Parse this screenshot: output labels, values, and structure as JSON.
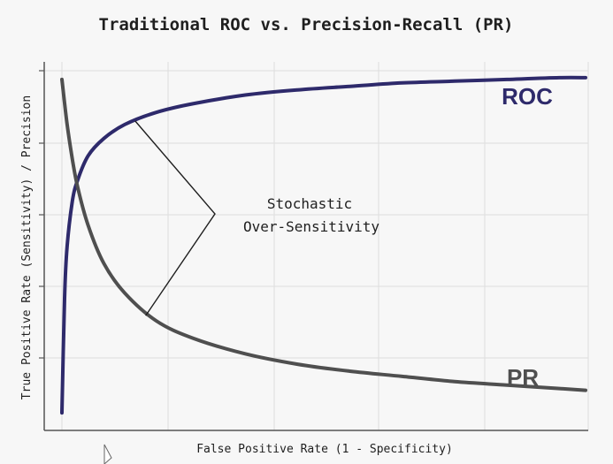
{
  "chart_data": {
    "type": "line",
    "title": "Traditional ROC vs. Precision-Recall (PR)",
    "xlabel": "False Positive Rate (1 - Specificity)",
    "ylabel": "True Positive Rate (Sensitivity) / Precision",
    "xlim": [
      0,
      1
    ],
    "ylim": [
      0,
      1
    ],
    "grid": true,
    "axis_ticks_labeled": false,
    "series": [
      {
        "name": "ROC",
        "color": "#2e2a6b",
        "x": [
          0.0,
          0.005,
          0.01,
          0.02,
          0.03,
          0.05,
          0.08,
          0.12,
          0.18,
          0.25,
          0.35,
          0.45,
          0.55,
          0.65,
          0.75,
          0.85,
          0.95,
          1.0
        ],
        "y": [
          0.02,
          0.35,
          0.5,
          0.63,
          0.69,
          0.76,
          0.81,
          0.85,
          0.885,
          0.91,
          0.935,
          0.95,
          0.96,
          0.97,
          0.975,
          0.98,
          0.985,
          0.985
        ]
      },
      {
        "name": "PR",
        "color": "#4f4f4f",
        "x": [
          0.0,
          0.01,
          0.02,
          0.03,
          0.05,
          0.08,
          0.12,
          0.18,
          0.25,
          0.35,
          0.45,
          0.55,
          0.65,
          0.75,
          0.85,
          0.95,
          1.0
        ],
        "y": [
          0.98,
          0.85,
          0.75,
          0.67,
          0.56,
          0.45,
          0.365,
          0.285,
          0.235,
          0.19,
          0.16,
          0.14,
          0.125,
          0.11,
          0.1,
          0.09,
          0.085
        ]
      }
    ],
    "annotation": {
      "text_lines": [
        "Stochastic",
        "Over-Sensitivity"
      ],
      "point_on_roc": [
        0.14,
        0.86
      ],
      "point_on_pr": [
        0.16,
        0.3
      ]
    }
  }
}
